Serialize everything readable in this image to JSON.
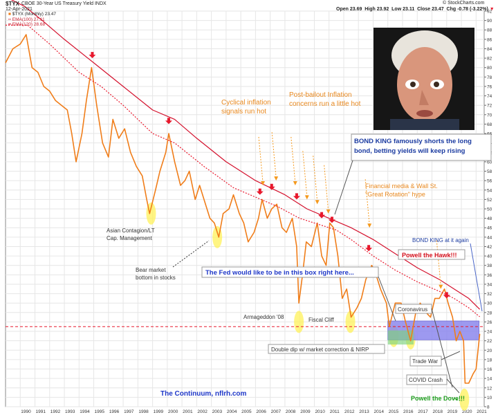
{
  "header": {
    "symbol": "$TYX",
    "name": "CBOE 30-Year US Treasury Yield",
    "exchange": "INDX",
    "date": "12-Apr-2021",
    "open": "Open 23.69",
    "high": "High 23.92",
    "low": "Low 23.11",
    "close": "Close 23.47",
    "chg": "Chg -0.78 (-3.22%)",
    "brand": "© StockCharts.com",
    "legend_price": "$TYX (Monthly) 23.47",
    "legend_ema100": "EMA(100) 27.11",
    "legend_ema120": "EMA(120) 28.68",
    "caret": "▼"
  },
  "colors": {
    "price": "#f07d19",
    "ema100": "#e8182c",
    "ema120": "#d4102c",
    "arrow_red": "#e8182c",
    "arrow_orange": "#f59a1e",
    "highlight": "#fff25a",
    "box_fill": "#8c88ee",
    "box_green": "#7ed37e",
    "bondking": "#1a3aa0",
    "fed": "#1e37c8",
    "powell": "#d4101c",
    "dove": "#1c9c1c",
    "continuum": "#1e37c8"
  },
  "chart_data": {
    "type": "line",
    "title": "$TYX CBOE 30-Year US Treasury Yield INDX",
    "xlabel": "",
    "ylabel": "",
    "ylim": [
      8,
      92
    ],
    "y_ticks": [
      8,
      10,
      12,
      14,
      16,
      18,
      20,
      22,
      24,
      26,
      28,
      30,
      32,
      34,
      36,
      38,
      40,
      42,
      44,
      46,
      48,
      50,
      52,
      54,
      56,
      58,
      60,
      62,
      64,
      66,
      68,
      70,
      72,
      74,
      76,
      78,
      80,
      82,
      84,
      86,
      88,
      90,
      92
    ],
    "x_ticks": [
      "1990",
      "1991",
      "1992",
      "1993",
      "1994",
      "1995",
      "1996",
      "1997",
      "1998",
      "1999",
      "2000",
      "2001",
      "2002",
      "2003",
      "2004",
      "2005",
      "2006",
      "2007",
      "2008",
      "2009",
      "2010",
      "2011",
      "2012",
      "2013",
      "2014",
      "2015",
      "2016",
      "2017",
      "2018",
      "2019",
      "2020",
      "2021"
    ],
    "reference_line_y": 25,
    "fed_box": {
      "x": [
        2015.0,
        2021.2
      ],
      "y": [
        22.2,
        26.2
      ]
    },
    "green_box": {
      "x": [
        2015.0,
        2016.75
      ],
      "y": [
        21.2,
        24.2
      ]
    },
    "series": [
      {
        "name": "$TYX (Monthly)",
        "x": [
          1989.0,
          1989.5,
          1990.0,
          1990.4,
          1990.8,
          1991.2,
          1991.6,
          1992.0,
          1992.4,
          1992.8,
          1993.2,
          1993.5,
          1993.8,
          1994.2,
          1994.5,
          1994.85,
          1995.2,
          1995.6,
          1996.0,
          1996.3,
          1996.7,
          1997.1,
          1997.5,
          1997.9,
          1998.3,
          1998.6,
          1998.8,
          1999.2,
          1999.5,
          1999.9,
          2000.1,
          2000.5,
          2000.9,
          2001.2,
          2001.5,
          2001.9,
          2002.2,
          2002.6,
          2002.9,
          2003.2,
          2003.5,
          2003.8,
          2004.2,
          2004.5,
          2004.9,
          2005.2,
          2005.5,
          2005.9,
          2006.2,
          2006.45,
          2006.8,
          2007.1,
          2007.45,
          2007.8,
          2008.1,
          2008.5,
          2008.8,
          2008.95,
          2009.2,
          2009.45,
          2009.8,
          2010.2,
          2010.5,
          2010.8,
          2011.05,
          2011.3,
          2011.6,
          2011.9,
          2012.2,
          2012.5,
          2012.9,
          2013.2,
          2013.5,
          2013.9,
          2014.1,
          2014.5,
          2014.9,
          2015.1,
          2015.5,
          2015.9,
          2016.2,
          2016.55,
          2016.9,
          2017.2,
          2017.6,
          2017.9,
          2018.2,
          2018.5,
          2018.85,
          2019.1,
          2019.4,
          2019.65,
          2019.9,
          2020.15,
          2020.25,
          2020.5,
          2020.8,
          2021.0,
          2021.25
        ],
        "values": [
          81,
          84,
          85,
          87,
          80,
          79,
          76,
          75,
          73,
          72,
          71,
          66,
          60,
          66,
          73,
          80,
          72,
          64,
          61,
          69,
          65,
          67,
          62,
          59,
          57,
          52,
          49,
          54,
          58,
          62,
          66,
          60,
          55,
          56,
          58,
          52,
          55,
          51,
          48,
          47,
          44,
          49,
          50,
          53,
          49,
          47,
          43,
          45,
          48,
          52,
          48,
          50,
          51,
          46,
          45,
          48,
          42,
          30,
          36,
          43,
          42,
          47,
          40,
          38,
          47,
          46,
          40,
          31,
          33,
          27,
          29,
          31,
          35,
          38,
          37,
          33,
          30,
          25,
          30,
          30,
          26,
          22,
          28,
          30,
          28,
          27,
          31,
          31,
          33,
          30,
          27,
          22,
          24,
          22,
          13,
          13,
          15,
          16,
          23.47
        ]
      },
      {
        "name": "EMA(100)",
        "x": [
          1989.0,
          1990.5,
          1992.0,
          1994.0,
          1995.5,
          1997.0,
          1999.0,
          2000.5,
          2002.5,
          2004.5,
          2006.0,
          2007.5,
          2009.0,
          2010.5,
          2011.5,
          2012.5,
          2014.0,
          2015.5,
          2017.0,
          2018.5,
          2019.5,
          2020.5,
          2021.25
        ],
        "values": [
          89,
          89,
          85,
          79,
          76,
          72,
          66,
          64,
          59,
          54.5,
          52.5,
          50.5,
          48,
          46.5,
          45.5,
          43.5,
          40,
          37,
          34.5,
          32.5,
          31,
          29,
          27.11
        ]
      },
      {
        "name": "EMA(120)",
        "x": [
          1989.0,
          1990.3,
          1991.5,
          1993.0,
          1995.0,
          1997.0,
          1999.0,
          2000.5,
          2002.0,
          2004.0,
          2006.0,
          2008.0,
          2009.5,
          2011.0,
          2012.5,
          2014.0,
          2015.5,
          2017.0,
          2018.5,
          2019.5,
          2020.5,
          2021.25
        ],
        "values": [
          95,
          93,
          90,
          86,
          81,
          76,
          71,
          69,
          65,
          60,
          56,
          53,
          50,
          48,
          46,
          43.5,
          40.5,
          37.5,
          35,
          33,
          31,
          28.68
        ]
      }
    ],
    "red_arrows": [
      [
        1994.9,
        82
      ],
      [
        2000.1,
        68
      ],
      [
        2006.3,
        53
      ],
      [
        2007.1,
        54
      ],
      [
        2008.8,
        52
      ],
      [
        2010.5,
        48
      ],
      [
        2011.2,
        47
      ],
      [
        2013.7,
        41
      ],
      [
        2019.0,
        31
      ]
    ],
    "orange_arrows": [
      [
        2006.5,
        55
      ],
      [
        2007.4,
        56
      ],
      [
        2008.7,
        55
      ],
      [
        2009.5,
        52
      ],
      [
        2010.2,
        51
      ],
      [
        2010.95,
        49
      ],
      [
        2013.75,
        46
      ],
      [
        2018.6,
        33
      ]
    ],
    "highlights": [
      [
        1998.9,
        49
      ],
      [
        2003.4,
        44
      ],
      [
        2008.95,
        26
      ],
      [
        2012.45,
        26
      ],
      [
        2015.4,
        23
      ],
      [
        2016.55,
        22.5
      ],
      [
        2020.2,
        9.5
      ]
    ],
    "annotations": [
      "Cyclical inflation\nsignals run hot",
      "Post-bailout Inflation\nconcerns run a little hot",
      "BOND KING famously shorts the long\nbond, betting yields will keep rising",
      "Financial media & Wall St.\n\"Great Rotation\" hype",
      "BOND KING at it again",
      "Powell the Hawk!!!",
      "The Fed would like to be in this box right here...",
      "Asian Contagion/LT\nCap. Management",
      "Bear market\nbottom in stocks",
      "Armageddon '08",
      "Fiscal Cliff",
      "Coronavirus",
      "Double dip w/ market correction & NIRP",
      "Trade War",
      "COVID Crash",
      "Powell the Dove!!!",
      "The Continuum, nflrh.com"
    ]
  }
}
